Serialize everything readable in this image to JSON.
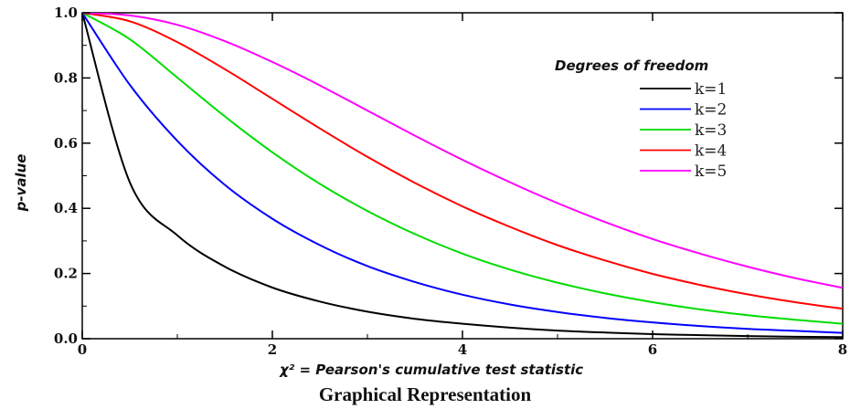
{
  "caption": "Graphical Representation",
  "chart_data": {
    "type": "line",
    "title": "",
    "xlabel": "χ² = Pearson's cumulative test statistic",
    "ylabel": "p-value",
    "xlim": [
      0,
      8
    ],
    "ylim": [
      0,
      1.0
    ],
    "x_ticks": [
      0,
      2,
      4,
      6,
      8
    ],
    "y_ticks": [
      "0.0",
      "0.2",
      "0.4",
      "0.6",
      "0.8",
      "1.0"
    ],
    "grid": false,
    "legend_title": "Degrees of freedom",
    "legend_position": "top-right",
    "x": [
      0,
      0.5,
      1,
      1.5,
      2,
      2.5,
      3,
      3.5,
      4,
      4.5,
      5,
      5.5,
      6,
      6.5,
      7,
      7.5,
      8
    ],
    "series": [
      {
        "name": "k=1",
        "color": "#000000",
        "values": [
          1.0,
          0.48,
          0.317,
          0.221,
          0.157,
          0.114,
          0.083,
          0.061,
          0.046,
          0.034,
          0.025,
          0.019,
          0.014,
          0.011,
          0.008,
          0.006,
          0.005
        ]
      },
      {
        "name": "k=2",
        "color": "#0000ff",
        "values": [
          1.0,
          0.779,
          0.607,
          0.472,
          0.368,
          0.287,
          0.223,
          0.174,
          0.135,
          0.105,
          0.082,
          0.064,
          0.05,
          0.039,
          0.03,
          0.024,
          0.018
        ]
      },
      {
        "name": "k=3",
        "color": "#00dd00",
        "values": [
          1.0,
          0.919,
          0.801,
          0.682,
          0.572,
          0.475,
          0.392,
          0.321,
          0.261,
          0.212,
          0.172,
          0.139,
          0.112,
          0.09,
          0.072,
          0.058,
          0.046
        ]
      },
      {
        "name": "k=4",
        "color": "#ff0000",
        "values": [
          1.0,
          0.974,
          0.91,
          0.827,
          0.736,
          0.645,
          0.558,
          0.478,
          0.406,
          0.343,
          0.287,
          0.24,
          0.199,
          0.165,
          0.136,
          0.112,
          0.092
        ]
      },
      {
        "name": "k=5",
        "color": "#ff00ff",
        "values": [
          1.0,
          0.992,
          0.963,
          0.913,
          0.849,
          0.777,
          0.7,
          0.623,
          0.549,
          0.48,
          0.416,
          0.358,
          0.306,
          0.261,
          0.221,
          0.186,
          0.156
        ]
      }
    ]
  }
}
